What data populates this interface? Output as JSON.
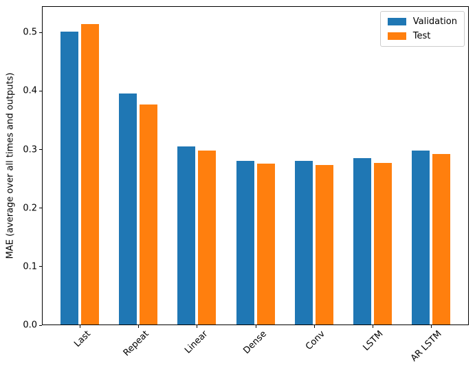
{
  "chart_data": {
    "type": "bar",
    "title": "",
    "xlabel": "",
    "ylabel": "MAE (average over all times and outputs)",
    "categories": [
      "Last",
      "Repeat",
      "Linear",
      "Dense",
      "Conv",
      "LSTM",
      "AR LSTM"
    ],
    "series": [
      {
        "name": "Validation",
        "color": "#1f77b4",
        "values": [
          0.502,
          0.396,
          0.306,
          0.281,
          0.281,
          0.286,
          0.298
        ]
      },
      {
        "name": "Test",
        "color": "#ff7f0e",
        "values": [
          0.516,
          0.378,
          0.299,
          0.276,
          0.274,
          0.277,
          0.292
        ]
      }
    ],
    "ylim": [
      0,
      0.545
    ],
    "yticks": [
      0.0,
      0.1,
      0.2,
      0.3,
      0.4,
      0.5
    ],
    "ytick_labels": [
      "0.0",
      "0.1",
      "0.2",
      "0.3",
      "0.4",
      "0.5"
    ],
    "x_tick_rotation_deg": 45,
    "grid": false,
    "legend_position": "upper right",
    "spine_color": "#000000",
    "legend_border_color": "#cccccc",
    "background_color": "#ffffff"
  }
}
